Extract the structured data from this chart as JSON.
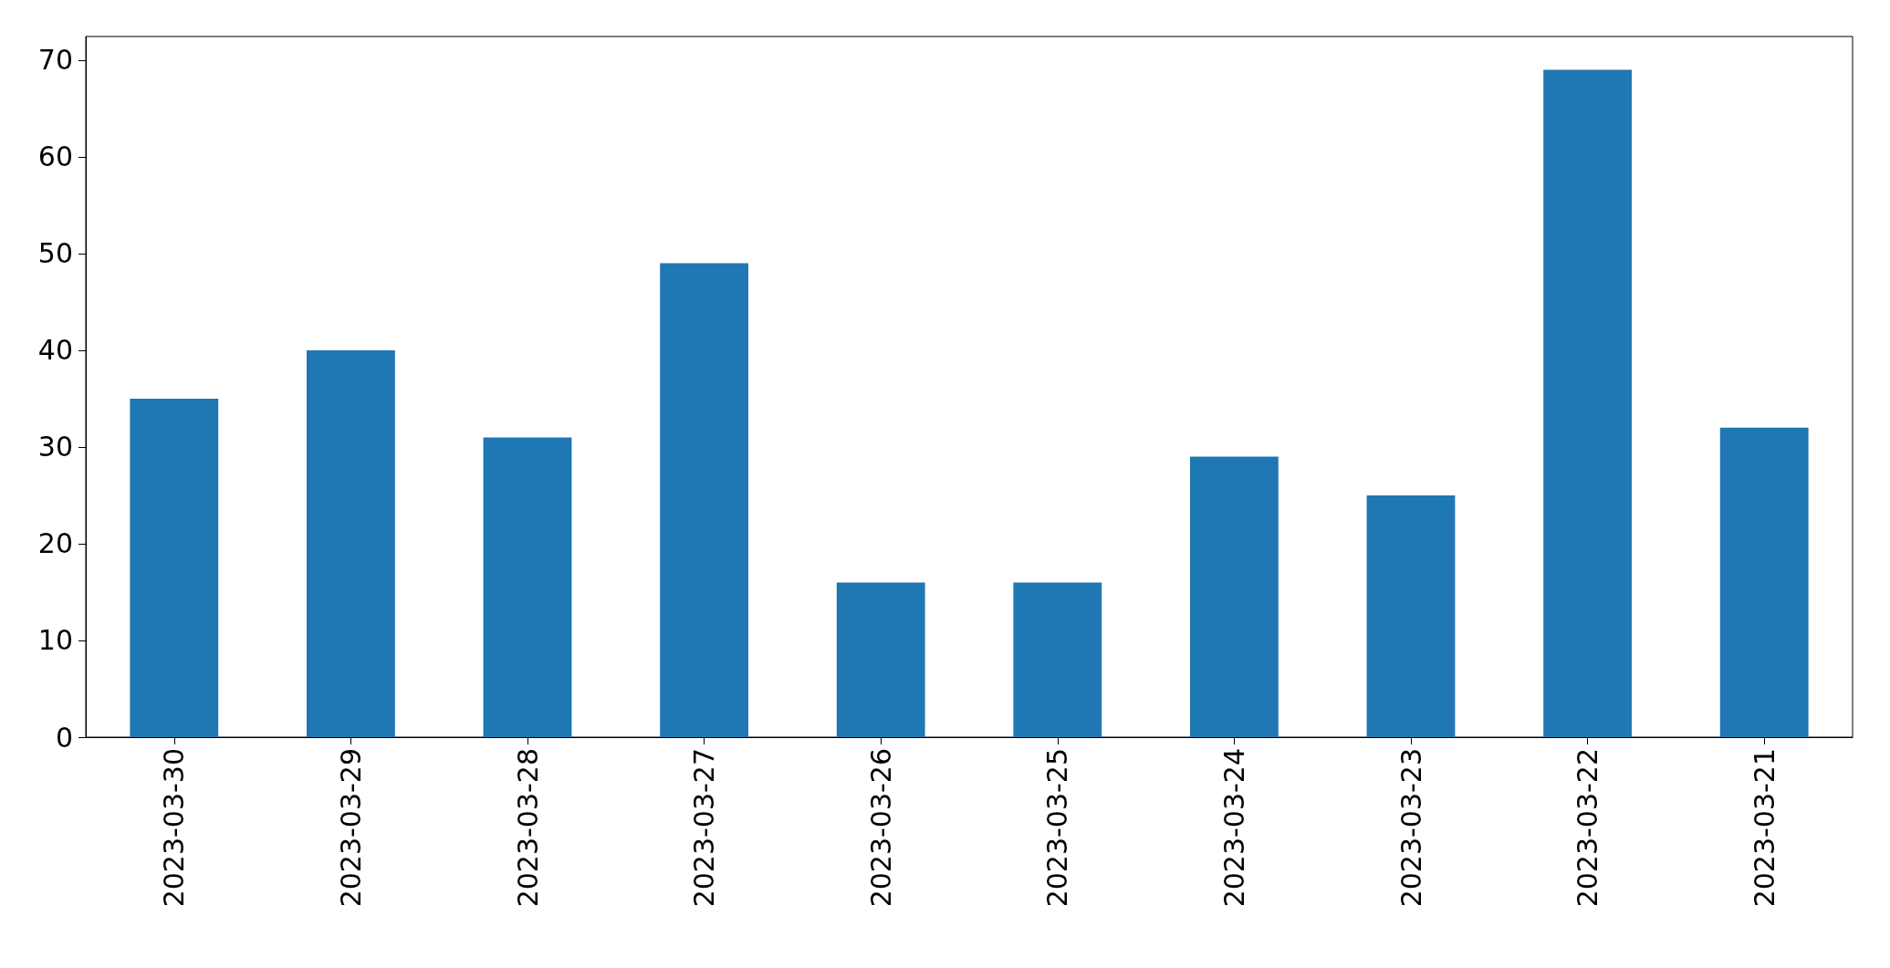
{
  "chart_data": {
    "type": "bar",
    "categories": [
      "2023-03-30",
      "2023-03-29",
      "2023-03-28",
      "2023-03-27",
      "2023-03-26",
      "2023-03-25",
      "2023-03-24",
      "2023-03-23",
      "2023-03-22",
      "2023-03-21"
    ],
    "values": [
      35,
      40,
      31,
      49,
      16,
      16,
      29,
      25,
      69,
      32
    ],
    "color": "#1f77b4",
    "ylim": [
      0,
      72.45
    ],
    "yticks": [
      0,
      10,
      20,
      30,
      40,
      50,
      60,
      70
    ],
    "grid": false
  }
}
